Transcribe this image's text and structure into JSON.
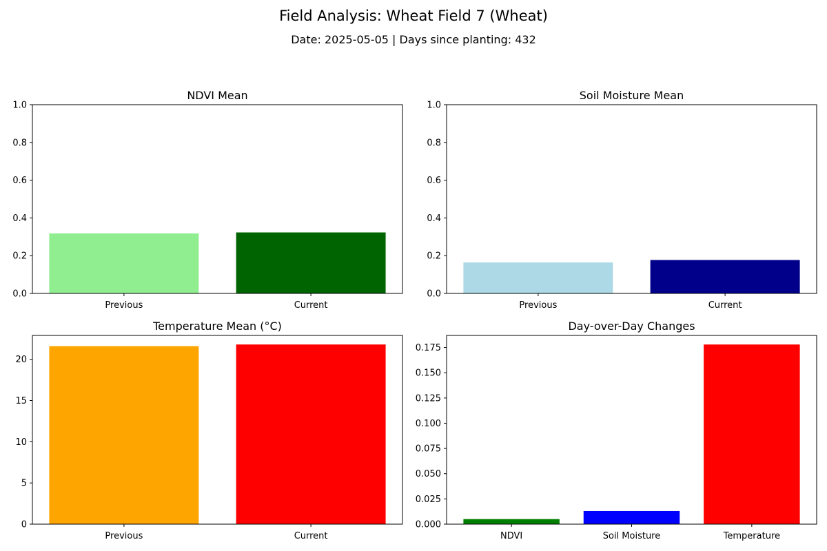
{
  "figure": {
    "title": "Field Analysis: Wheat Field 7 (Wheat)",
    "subtitle": "Date: 2025-05-05 | Days since planting: 432"
  },
  "chart_data": [
    {
      "type": "bar",
      "title": "NDVI Mean",
      "categories": [
        "Previous",
        "Current"
      ],
      "values": [
        0.318,
        0.323
      ],
      "colors": [
        "#90ee90",
        "#006400"
      ],
      "ylim": [
        0,
        1.0
      ],
      "yticks": [
        0.0,
        0.2,
        0.4,
        0.6,
        0.8,
        1.0
      ],
      "ytick_labels": [
        "0.0",
        "0.2",
        "0.4",
        "0.6",
        "0.8",
        "1.0"
      ],
      "grid": false
    },
    {
      "type": "bar",
      "title": "Soil Moisture Mean",
      "categories": [
        "Previous",
        "Current"
      ],
      "values": [
        0.164,
        0.177
      ],
      "colors": [
        "#add8e6",
        "#00008b"
      ],
      "ylim": [
        0,
        1.0
      ],
      "yticks": [
        0.0,
        0.2,
        0.4,
        0.6,
        0.8,
        1.0
      ],
      "ytick_labels": [
        "0.0",
        "0.2",
        "0.4",
        "0.6",
        "0.8",
        "1.0"
      ],
      "grid": false
    },
    {
      "type": "bar",
      "title": "Temperature Mean (°C)",
      "categories": [
        "Previous",
        "Current"
      ],
      "values": [
        21.6,
        21.8
      ],
      "colors": [
        "#ffa500",
        "#ff0000"
      ],
      "ylim": [
        0,
        22.9
      ],
      "yticks": [
        0,
        5,
        10,
        15,
        20
      ],
      "ytick_labels": [
        "0",
        "5",
        "10",
        "15",
        "20"
      ],
      "grid": false
    },
    {
      "type": "bar",
      "title": "Day-over-Day Changes",
      "categories": [
        "NDVI",
        "Soil Moisture",
        "Temperature"
      ],
      "values": [
        0.005,
        0.013,
        0.178
      ],
      "colors": [
        "#008000",
        "#0000ff",
        "#ff0000"
      ],
      "ylim": [
        0,
        0.187
      ],
      "yticks": [
        0.0,
        0.025,
        0.05,
        0.075,
        0.1,
        0.125,
        0.15,
        0.175
      ],
      "ytick_labels": [
        "0.000",
        "0.025",
        "0.050",
        "0.075",
        "0.100",
        "0.125",
        "0.150",
        "0.175"
      ],
      "grid": false
    }
  ]
}
